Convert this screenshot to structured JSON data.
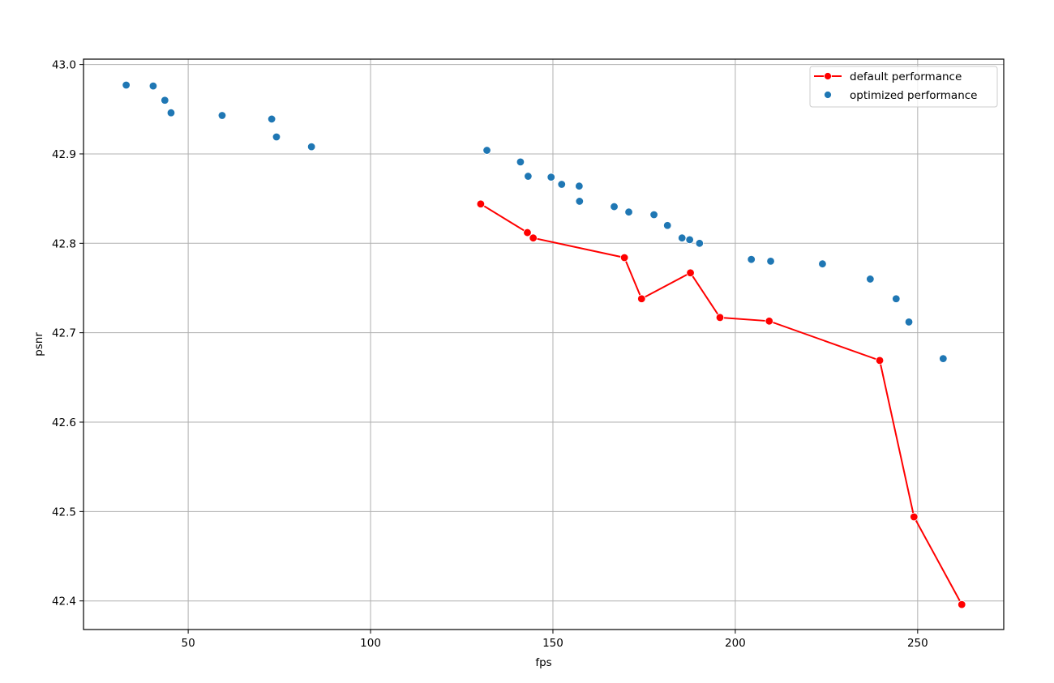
{
  "chart_data": {
    "type": "line+scatter",
    "title": "",
    "xlabel": "fps",
    "ylabel": "psnr",
    "xlim": [
      21.3,
      273.6
    ],
    "ylim": [
      42.368,
      43.006
    ],
    "xticks": [
      50,
      100,
      150,
      200,
      250
    ],
    "xtick_labels": [
      "50",
      "100",
      "150",
      "200",
      "250"
    ],
    "yticks": [
      42.4,
      42.5,
      42.6,
      42.7,
      42.8,
      42.9,
      43.0
    ],
    "ytick_labels": [
      "42.4",
      "42.5",
      "42.6",
      "42.7",
      "42.8",
      "42.9",
      "43.0"
    ],
    "grid": true,
    "legend_position": "upper right",
    "series": [
      {
        "name": "default performance",
        "kind": "line-with-markers",
        "color": "#ff0000",
        "points": [
          [
            130.2,
            42.844
          ],
          [
            143.0,
            42.812
          ],
          [
            144.6,
            42.806
          ],
          [
            169.6,
            42.784
          ],
          [
            174.3,
            42.738
          ],
          [
            187.7,
            42.767
          ],
          [
            195.8,
            42.717
          ],
          [
            209.3,
            42.713
          ],
          [
            239.6,
            42.669
          ],
          [
            249.0,
            42.494
          ],
          [
            262.1,
            42.396
          ]
        ]
      },
      {
        "name": "optimized performance",
        "kind": "scatter",
        "color": "#1f77b4",
        "points": [
          [
            33.0,
            42.977
          ],
          [
            40.4,
            42.976
          ],
          [
            43.6,
            42.96
          ],
          [
            45.3,
            42.946
          ],
          [
            59.3,
            42.943
          ],
          [
            72.9,
            42.939
          ],
          [
            74.2,
            42.919
          ],
          [
            83.8,
            42.908
          ],
          [
            131.9,
            42.904
          ],
          [
            141.1,
            42.891
          ],
          [
            143.2,
            42.875
          ],
          [
            149.5,
            42.874
          ],
          [
            152.4,
            42.866
          ],
          [
            157.2,
            42.864
          ],
          [
            157.3,
            42.847
          ],
          [
            166.8,
            42.841
          ],
          [
            170.8,
            42.835
          ],
          [
            177.7,
            42.832
          ],
          [
            181.4,
            42.82
          ],
          [
            185.4,
            42.806
          ],
          [
            187.5,
            42.804
          ],
          [
            190.2,
            42.8
          ],
          [
            204.4,
            42.782
          ],
          [
            209.7,
            42.78
          ],
          [
            223.9,
            42.777
          ],
          [
            237.0,
            42.76
          ],
          [
            244.1,
            42.738
          ],
          [
            247.6,
            42.712
          ],
          [
            257.0,
            42.671
          ]
        ]
      }
    ]
  },
  "legend": {
    "items": [
      {
        "label": "default performance",
        "color": "#ff0000"
      },
      {
        "label": "optimized performance",
        "color": "#1f77b4"
      }
    ]
  },
  "axes": {
    "xlabel": "fps",
    "ylabel": "psnr"
  }
}
